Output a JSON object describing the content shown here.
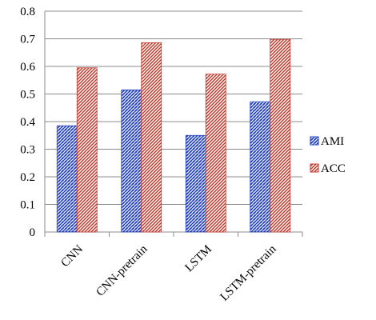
{
  "chart_data": {
    "type": "bar",
    "categories": [
      "CNN",
      "CNN-pretrain",
      "LSTM",
      "LSTM-pretrain"
    ],
    "series": [
      {
        "name": "AMI",
        "values": [
          0.385,
          0.515,
          0.35,
          0.472
        ],
        "color": "#1f3fbf",
        "pattern": "dots-diagonal"
      },
      {
        "name": "ACC",
        "values": [
          0.595,
          0.686,
          0.572,
          0.698
        ],
        "color": "#c0392b",
        "pattern": "diagonal-stripes"
      }
    ],
    "ylim": [
      0,
      0.8
    ],
    "yticks": [
      "0",
      "0.1",
      "0.2",
      "0.3",
      "0.4",
      "0.5",
      "0.6",
      "0.7",
      "0.8"
    ],
    "ytick_values": [
      0,
      0.1,
      0.2,
      0.3,
      0.4,
      0.5,
      0.6,
      0.7,
      0.8
    ],
    "grid": true,
    "legend": "right",
    "title": "",
    "xlabel": "",
    "ylabel": ""
  }
}
